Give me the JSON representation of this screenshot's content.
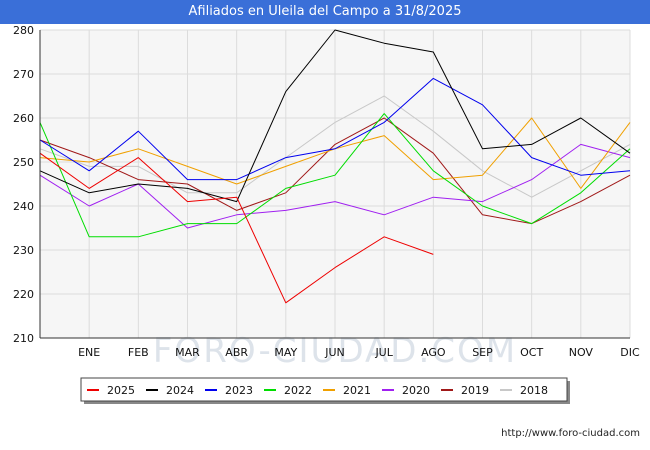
{
  "header": {
    "title": "Afiliados en Uleila del Campo a 31/8/2025"
  },
  "watermark": "FORO-CIUDAD.COM",
  "footer": {
    "url": "http://www.foro-ciudad.com"
  },
  "chart_data": {
    "type": "line",
    "title": "Afiliados en Uleila del Campo a 31/8/2025",
    "categories": [
      "",
      "ENE",
      "FEB",
      "MAR",
      "ABR",
      "MAY",
      "JUN",
      "JUL",
      "AGO",
      "SEP",
      "OCT",
      "NOV",
      "DIC"
    ],
    "ylim": [
      210,
      280
    ],
    "yticks": [
      210,
      220,
      230,
      240,
      250,
      260,
      270,
      280
    ],
    "grid": true,
    "legend_position": "bottom",
    "series": [
      {
        "name": "2025",
        "color": "#ee0000",
        "values": [
          252,
          244,
          251,
          241,
          242,
          218,
          226,
          233,
          229,
          null,
          null,
          null,
          null
        ]
      },
      {
        "name": "2024",
        "color": "#000000",
        "values": [
          248,
          243,
          245,
          244,
          241,
          266,
          280,
          277,
          275,
          253,
          254,
          260,
          252
        ]
      },
      {
        "name": "2023",
        "color": "#0000ee",
        "values": [
          255,
          248,
          257,
          246,
          246,
          251,
          253,
          259,
          269,
          263,
          251,
          247,
          248
        ]
      },
      {
        "name": "2022",
        "color": "#00dd00",
        "values": [
          259,
          233,
          233,
          236,
          236,
          244,
          247,
          261,
          248,
          240,
          236,
          243,
          253
        ]
      },
      {
        "name": "2021",
        "color": "#f0a000",
        "values": [
          251,
          250,
          253,
          249,
          245,
          249,
          253,
          256,
          246,
          247,
          260,
          244,
          259
        ]
      },
      {
        "name": "2020",
        "color": "#a020f0",
        "values": [
          247,
          240,
          245,
          235,
          238,
          239,
          241,
          238,
          242,
          241,
          246,
          254,
          251
        ]
      },
      {
        "name": "2019",
        "color": "#a01818",
        "values": [
          255,
          251,
          246,
          245,
          239,
          243,
          254,
          260,
          252,
          238,
          236,
          241,
          247
        ]
      },
      {
        "name": "2018",
        "color": "#c8c8c8",
        "values": [
          253,
          249,
          249,
          243,
          243,
          251,
          259,
          265,
          257,
          248,
          242,
          248,
          254
        ]
      }
    ]
  }
}
